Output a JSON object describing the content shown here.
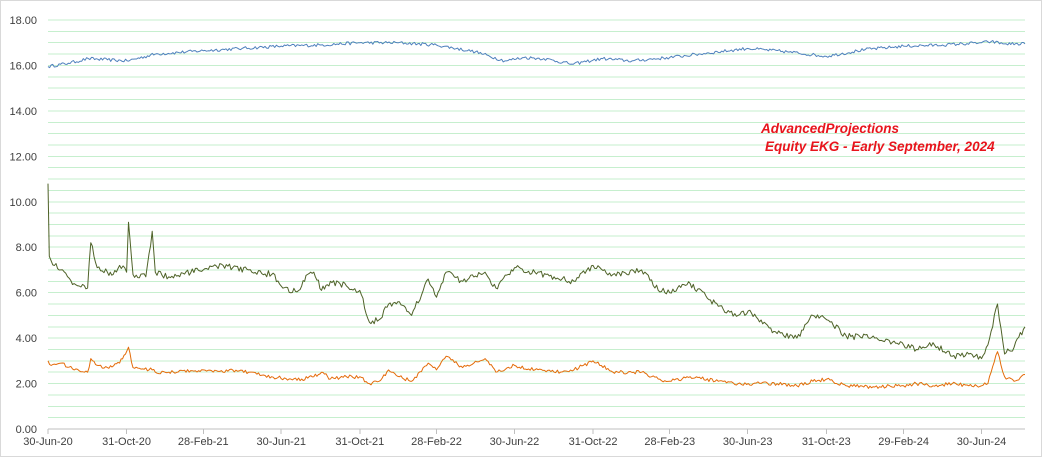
{
  "chart_data": {
    "type": "line",
    "title": "",
    "annotation_lines": [
      "AdvancedProjections",
      "Equity EKG - Early September, 2024"
    ],
    "xlabel": "",
    "ylabel": "",
    "ylim": [
      0,
      18
    ],
    "yticks": [
      "0.00",
      "2.00",
      "4.00",
      "6.00",
      "8.00",
      "10.00",
      "12.00",
      "14.00",
      "16.00",
      "18.00"
    ],
    "xticks": [
      "30-Jun-20",
      "31-Oct-20",
      "28-Feb-21",
      "30-Jun-21",
      "31-Oct-21",
      "28-Feb-22",
      "30-Jun-22",
      "31-Oct-22",
      "28-Feb-23",
      "30-Jun-23",
      "31-Oct-23",
      "29-Feb-24",
      "30-Jun-24"
    ],
    "xlim": [
      "2020-06-30",
      "2024-09-06"
    ],
    "grid": true,
    "minor_gridlines_per_major": 4,
    "colors": {
      "gridline": "#c6efce",
      "axis": "#bfbfbf",
      "series_1": "#4f81bd",
      "series_2": "#4f6228",
      "series_3": "#e46c0a",
      "annotation": "#e8141c"
    },
    "series": [
      {
        "color": "#4f81bd",
        "x": [
          "2020-06-30",
          "2020-08-01",
          "2020-09-01",
          "2020-10-01",
          "2020-11-01",
          "2020-12-15",
          "2021-02-28",
          "2021-04-30",
          "2021-06-30",
          "2021-08-31",
          "2021-10-31",
          "2021-12-31",
          "2022-02-28",
          "2022-04-30",
          "2022-06-15",
          "2022-07-15",
          "2022-08-15",
          "2022-09-30",
          "2022-10-15",
          "2022-11-15",
          "2022-12-31",
          "2023-02-28",
          "2023-04-30",
          "2023-06-30",
          "2023-08-31",
          "2023-10-31",
          "2023-12-31",
          "2024-02-29",
          "2024-04-30",
          "2024-06-30",
          "2024-07-15",
          "2024-08-05",
          "2024-09-06"
        ],
        "values": [
          15.95,
          16.1,
          16.3,
          16.25,
          16.2,
          16.5,
          16.65,
          16.75,
          16.85,
          16.9,
          17.0,
          17.0,
          16.9,
          16.6,
          16.2,
          16.35,
          16.3,
          16.05,
          16.15,
          16.3,
          16.2,
          16.35,
          16.55,
          16.75,
          16.6,
          16.4,
          16.7,
          16.85,
          16.9,
          17.0,
          17.05,
          16.95,
          16.95
        ]
      },
      {
        "color": "#4f6228",
        "x": [
          "2020-06-30",
          "2020-07-02",
          "2020-07-05",
          "2020-07-20",
          "2020-08-10",
          "2020-08-31",
          "2020-09-05",
          "2020-09-15",
          "2020-10-01",
          "2020-10-10",
          "2020-10-20",
          "2020-10-31",
          "2020-11-03",
          "2020-11-10",
          "2020-11-30",
          "2020-12-10",
          "2020-12-15",
          "2021-01-05",
          "2021-02-28",
          "2021-03-31",
          "2021-04-15",
          "2021-05-10",
          "2021-06-15",
          "2021-07-15",
          "2021-08-01",
          "2021-08-10",
          "2021-08-20",
          "2021-09-01",
          "2021-09-15",
          "2021-10-10",
          "2021-10-31",
          "2021-11-15",
          "2021-11-30",
          "2021-12-15",
          "2022-01-01",
          "2022-01-20",
          "2022-02-15",
          "2022-02-28",
          "2022-03-15",
          "2022-04-10",
          "2022-05-15",
          "2022-06-01",
          "2022-06-30",
          "2022-08-01",
          "2022-08-31",
          "2022-10-01",
          "2022-10-31",
          "2022-12-01",
          "2023-01-15",
          "2023-02-10",
          "2023-02-28",
          "2023-04-01",
          "2023-05-15",
          "2023-06-15",
          "2023-07-01",
          "2023-08-15",
          "2023-09-15",
          "2023-10-10",
          "2023-11-01",
          "2023-12-01",
          "2024-01-15",
          "2024-02-29",
          "2024-03-20",
          "2024-04-15",
          "2024-05-15",
          "2024-06-10",
          "2024-06-30",
          "2024-07-10",
          "2024-07-25",
          "2024-08-05",
          "2024-08-20",
          "2024-09-06"
        ],
        "values": [
          10.8,
          7.6,
          7.4,
          7.0,
          6.4,
          6.2,
          8.2,
          7.1,
          6.9,
          6.8,
          7.2,
          6.9,
          9.1,
          6.8,
          6.7,
          8.7,
          6.9,
          6.7,
          7.0,
          7.2,
          7.1,
          7.0,
          6.8,
          6.0,
          6.3,
          6.8,
          6.9,
          6.1,
          6.5,
          6.3,
          6.1,
          4.7,
          4.8,
          5.5,
          5.6,
          5.0,
          6.6,
          5.8,
          6.9,
          6.5,
          6.9,
          6.2,
          7.1,
          6.9,
          6.7,
          6.5,
          7.2,
          6.8,
          7.0,
          6.1,
          6.0,
          6.4,
          5.4,
          5.0,
          5.2,
          4.2,
          4.0,
          5.0,
          4.8,
          4.1,
          4.0,
          3.7,
          3.5,
          3.8,
          3.2,
          3.3,
          3.1,
          3.7,
          5.5,
          3.3,
          3.6,
          4.5
        ]
      },
      {
        "color": "#e46c0a",
        "x": [
          "2020-06-30",
          "2020-07-05",
          "2020-07-20",
          "2020-08-10",
          "2020-08-31",
          "2020-09-05",
          "2020-09-15",
          "2020-10-01",
          "2020-10-20",
          "2020-11-03",
          "2020-11-10",
          "2020-12-10",
          "2020-12-15",
          "2021-01-05",
          "2021-02-28",
          "2021-03-31",
          "2021-04-15",
          "2021-05-10",
          "2021-06-15",
          "2021-07-15",
          "2021-08-01",
          "2021-08-20",
          "2021-09-01",
          "2021-09-15",
          "2021-10-10",
          "2021-10-31",
          "2021-11-15",
          "2021-11-30",
          "2021-12-15",
          "2022-01-01",
          "2022-01-20",
          "2022-02-15",
          "2022-02-28",
          "2022-03-15",
          "2022-04-10",
          "2022-05-15",
          "2022-06-01",
          "2022-06-30",
          "2022-08-01",
          "2022-08-31",
          "2022-10-01",
          "2022-10-31",
          "2022-12-01",
          "2023-01-15",
          "2023-02-10",
          "2023-02-28",
          "2023-04-01",
          "2023-05-15",
          "2023-06-15",
          "2023-07-01",
          "2023-08-15",
          "2023-09-15",
          "2023-10-10",
          "2023-11-01",
          "2023-12-01",
          "2024-01-15",
          "2024-02-29",
          "2024-03-20",
          "2024-04-15",
          "2024-05-15",
          "2024-06-10",
          "2024-06-30",
          "2024-07-10",
          "2024-07-25",
          "2024-08-05",
          "2024-08-20",
          "2024-09-06"
        ],
        "values": [
          3.0,
          2.8,
          2.9,
          2.6,
          2.5,
          3.1,
          2.8,
          2.7,
          2.9,
          3.6,
          2.7,
          2.6,
          2.5,
          2.5,
          2.6,
          2.5,
          2.6,
          2.5,
          2.3,
          2.2,
          2.2,
          2.3,
          2.5,
          2.2,
          2.3,
          2.3,
          2.0,
          2.1,
          2.6,
          2.3,
          2.1,
          2.9,
          2.6,
          3.2,
          2.7,
          3.1,
          2.5,
          2.8,
          2.6,
          2.5,
          2.6,
          3.0,
          2.5,
          2.5,
          2.2,
          2.1,
          2.3,
          2.1,
          2.0,
          2.0,
          2.0,
          1.9,
          2.1,
          2.2,
          1.9,
          1.85,
          1.9,
          2.0,
          1.9,
          2.0,
          1.9,
          1.9,
          2.0,
          3.4,
          2.3,
          2.1,
          2.4
        ]
      }
    ]
  }
}
